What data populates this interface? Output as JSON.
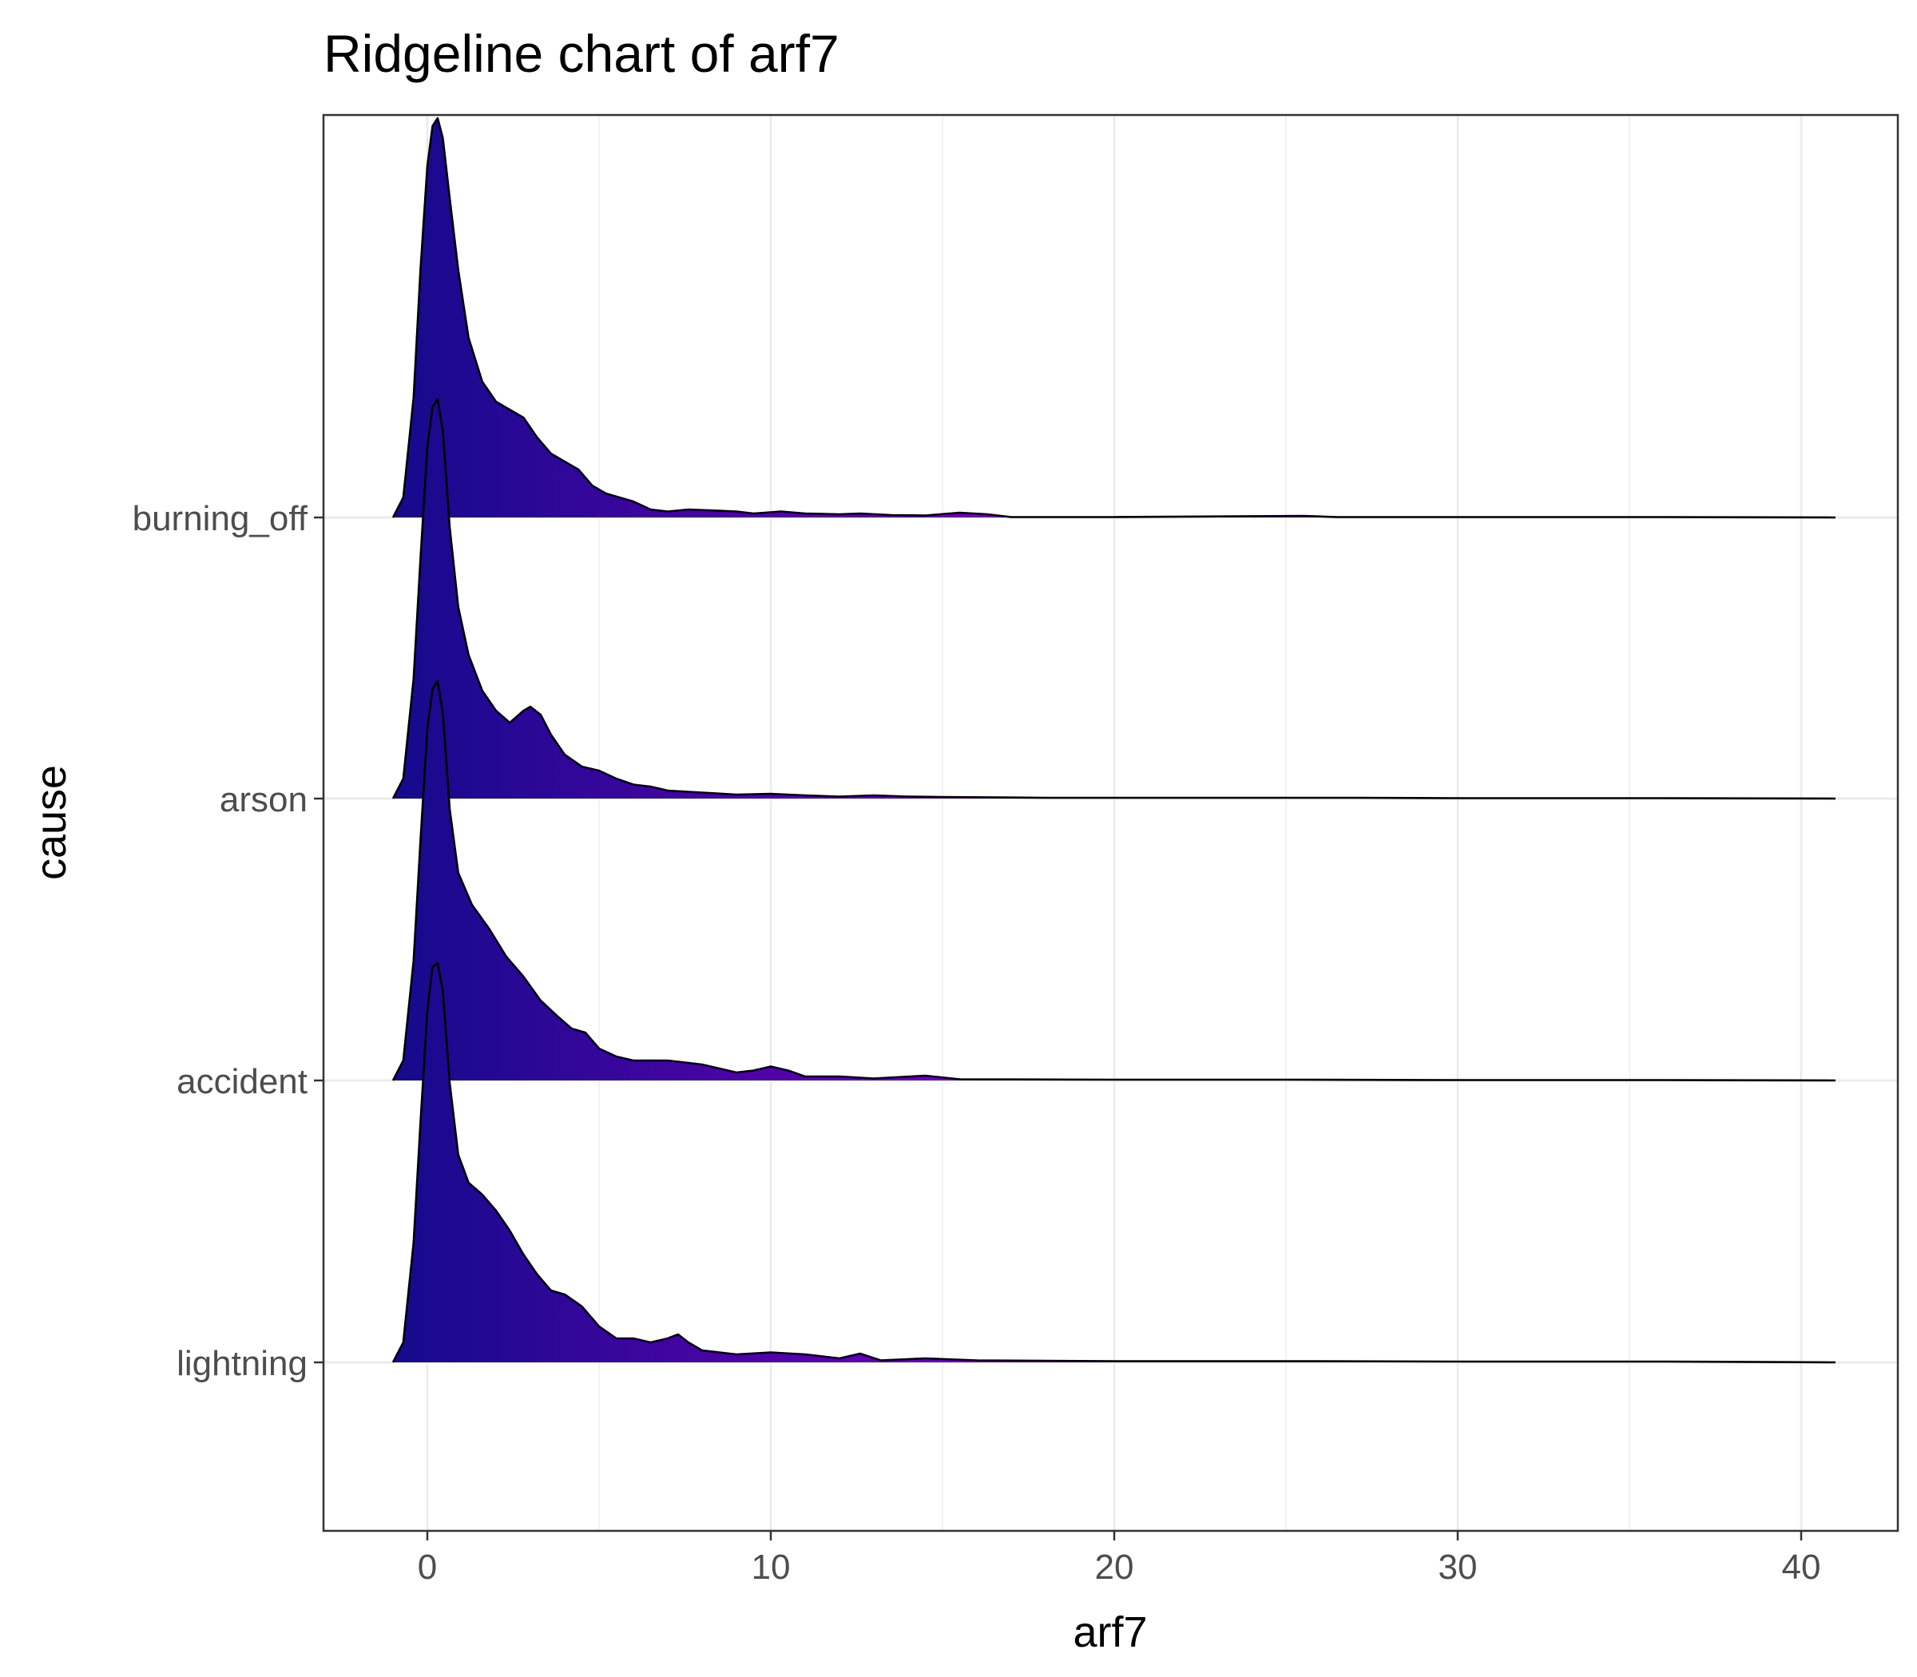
{
  "chart_data": {
    "type": "ridgeline",
    "title": "Ridgeline chart of arf7",
    "xlabel": "arf7",
    "ylabel": "cause",
    "xlim": [
      -3,
      43
    ],
    "x_ticks": [
      0,
      10,
      20,
      30,
      40
    ],
    "categories": [
      "lightning",
      "accident",
      "arson",
      "burning_off"
    ],
    "grid": true,
    "fill_gradient": [
      "#140a8c",
      "#7a00b8"
    ],
    "series": [
      {
        "name": "lightning",
        "points": [
          [
            -1.0,
            0
          ],
          [
            -0.7,
            0.05
          ],
          [
            -0.4,
            0.3
          ],
          [
            -0.2,
            0.6
          ],
          [
            0.0,
            0.88
          ],
          [
            0.15,
            0.99
          ],
          [
            0.3,
            1.0
          ],
          [
            0.45,
            0.93
          ],
          [
            0.65,
            0.7
          ],
          [
            0.9,
            0.52
          ],
          [
            1.2,
            0.45
          ],
          [
            1.6,
            0.42
          ],
          [
            2.0,
            0.38
          ],
          [
            2.4,
            0.33
          ],
          [
            2.8,
            0.27
          ],
          [
            3.2,
            0.22
          ],
          [
            3.6,
            0.18
          ],
          [
            4.0,
            0.17
          ],
          [
            4.5,
            0.14
          ],
          [
            5.0,
            0.09
          ],
          [
            5.5,
            0.06
          ],
          [
            6.0,
            0.06
          ],
          [
            6.5,
            0.05
          ],
          [
            7.0,
            0.06
          ],
          [
            7.3,
            0.07
          ],
          [
            7.6,
            0.05
          ],
          [
            8.0,
            0.03
          ],
          [
            9.0,
            0.02
          ],
          [
            10.0,
            0.025
          ],
          [
            11.0,
            0.02
          ],
          [
            12.0,
            0.01
          ],
          [
            12.6,
            0.022
          ],
          [
            13.2,
            0.005
          ],
          [
            14.5,
            0.01
          ],
          [
            16,
            0.005
          ],
          [
            20,
            0.003
          ],
          [
            26,
            0.003
          ],
          [
            30,
            0.002
          ],
          [
            36,
            0.002
          ],
          [
            41,
            0
          ]
        ]
      },
      {
        "name": "accident",
        "points": [
          [
            -1.0,
            0
          ],
          [
            -0.7,
            0.05
          ],
          [
            -0.4,
            0.3
          ],
          [
            -0.2,
            0.6
          ],
          [
            0.0,
            0.88
          ],
          [
            0.15,
            0.98
          ],
          [
            0.3,
            1.0
          ],
          [
            0.45,
            0.92
          ],
          [
            0.65,
            0.68
          ],
          [
            0.9,
            0.52
          ],
          [
            1.3,
            0.44
          ],
          [
            1.8,
            0.38
          ],
          [
            2.3,
            0.31
          ],
          [
            2.8,
            0.26
          ],
          [
            3.3,
            0.2
          ],
          [
            3.8,
            0.16
          ],
          [
            4.2,
            0.13
          ],
          [
            4.6,
            0.12
          ],
          [
            5.0,
            0.08
          ],
          [
            5.5,
            0.06
          ],
          [
            6.0,
            0.05
          ],
          [
            7.0,
            0.05
          ],
          [
            8.0,
            0.04
          ],
          [
            8.5,
            0.03
          ],
          [
            9.0,
            0.02
          ],
          [
            9.5,
            0.025
          ],
          [
            10.0,
            0.035
          ],
          [
            10.5,
            0.025
          ],
          [
            11.0,
            0.01
          ],
          [
            12.0,
            0.01
          ],
          [
            13.0,
            0.005
          ],
          [
            14.5,
            0.012
          ],
          [
            15.5,
            0.003
          ],
          [
            20,
            0.002
          ],
          [
            25,
            0.002
          ],
          [
            30,
            0.001
          ],
          [
            36,
            0.001
          ],
          [
            41,
            0
          ]
        ]
      },
      {
        "name": "arson",
        "points": [
          [
            -1.0,
            0
          ],
          [
            -0.7,
            0.05
          ],
          [
            -0.4,
            0.3
          ],
          [
            -0.2,
            0.6
          ],
          [
            0.0,
            0.88
          ],
          [
            0.15,
            0.98
          ],
          [
            0.3,
            1.0
          ],
          [
            0.45,
            0.92
          ],
          [
            0.65,
            0.68
          ],
          [
            0.9,
            0.48
          ],
          [
            1.2,
            0.36
          ],
          [
            1.6,
            0.27
          ],
          [
            2.0,
            0.22
          ],
          [
            2.4,
            0.19
          ],
          [
            2.8,
            0.22
          ],
          [
            3.0,
            0.23
          ],
          [
            3.3,
            0.21
          ],
          [
            3.6,
            0.16
          ],
          [
            4.0,
            0.11
          ],
          [
            4.5,
            0.08
          ],
          [
            5.0,
            0.07
          ],
          [
            5.5,
            0.05
          ],
          [
            6.0,
            0.035
          ],
          [
            6.5,
            0.03
          ],
          [
            7.0,
            0.02
          ],
          [
            8.0,
            0.015
          ],
          [
            9.0,
            0.01
          ],
          [
            10.0,
            0.012
          ],
          [
            11.0,
            0.008
          ],
          [
            12.0,
            0.005
          ],
          [
            13.0,
            0.008
          ],
          [
            14.0,
            0.005
          ],
          [
            15.0,
            0.004
          ],
          [
            18,
            0.002
          ],
          [
            22,
            0.002
          ],
          [
            27,
            0.002
          ],
          [
            30,
            0.001
          ],
          [
            36,
            0.001
          ],
          [
            41,
            0
          ]
        ]
      },
      {
        "name": "burning_off",
        "points": [
          [
            -1.0,
            0
          ],
          [
            -0.7,
            0.05
          ],
          [
            -0.4,
            0.3
          ],
          [
            -0.2,
            0.62
          ],
          [
            0.0,
            0.88
          ],
          [
            0.15,
            0.98
          ],
          [
            0.3,
            1.0
          ],
          [
            0.45,
            0.95
          ],
          [
            0.65,
            0.8
          ],
          [
            0.9,
            0.62
          ],
          [
            1.2,
            0.45
          ],
          [
            1.6,
            0.34
          ],
          [
            2.0,
            0.29
          ],
          [
            2.4,
            0.27
          ],
          [
            2.8,
            0.25
          ],
          [
            3.2,
            0.2
          ],
          [
            3.6,
            0.16
          ],
          [
            4.0,
            0.14
          ],
          [
            4.4,
            0.12
          ],
          [
            4.8,
            0.08
          ],
          [
            5.2,
            0.06
          ],
          [
            5.6,
            0.05
          ],
          [
            6.0,
            0.04
          ],
          [
            6.5,
            0.02
          ],
          [
            7.0,
            0.015
          ],
          [
            7.6,
            0.02
          ],
          [
            8.2,
            0.018
          ],
          [
            9.0,
            0.015
          ],
          [
            9.5,
            0.01
          ],
          [
            10.3,
            0.015
          ],
          [
            11.0,
            0.01
          ],
          [
            12.0,
            0.008
          ],
          [
            12.6,
            0.01
          ],
          [
            13.5,
            0.006
          ],
          [
            14.5,
            0.005
          ],
          [
            15.5,
            0.012
          ],
          [
            16.3,
            0.008
          ],
          [
            17.0,
            0.001
          ],
          [
            20,
            0.001
          ],
          [
            25.5,
            0.004
          ],
          [
            26.5,
            0.001
          ],
          [
            30,
            0.001
          ],
          [
            36,
            0.001
          ],
          [
            41,
            0
          ]
        ]
      }
    ]
  }
}
